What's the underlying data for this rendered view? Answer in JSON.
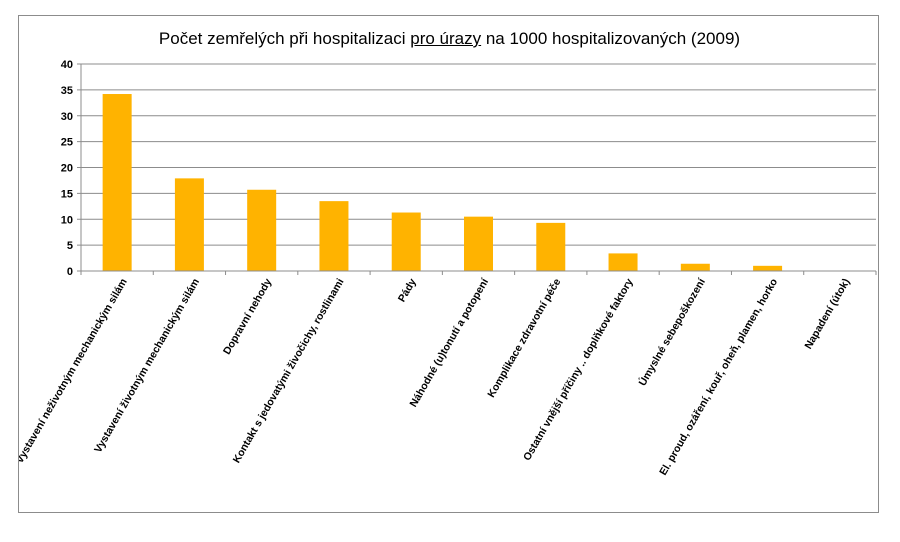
{
  "chart_data": {
    "type": "bar",
    "title_pre": "Počet zemřelých při hospitalizaci ",
    "title_underlined": "pro úrazy",
    "title_post": " na 1000 hospitalizovaných (2009)",
    "xlabel": "",
    "ylabel": "",
    "ylim": [
      0,
      40
    ],
    "yticks": [
      0,
      5,
      10,
      15,
      20,
      25,
      30,
      35,
      40
    ],
    "grid": true,
    "bar_color": "#FFB300",
    "categories": [
      "Vystavení neživotným mechanickým silám",
      "Vystavení životným mechanickým silám",
      "Dopravní nehody",
      "Kontakt s jedovatými živočichy, rostlinami",
      "Pády",
      "Náhodné (u)tonutí a potopení",
      "Komplikace zdravotní péče",
      "Ostatní vnější příčiny .. doplňkové faktory",
      "Úmyslné sebepoškození",
      "El. proud, ozáření, kouř, oheň, plamen, horko",
      "Napadení (útok)"
    ],
    "values": [
      34.2,
      17.9,
      15.7,
      13.5,
      11.3,
      10.5,
      9.3,
      3.4,
      1.4,
      1.0,
      0
    ]
  }
}
